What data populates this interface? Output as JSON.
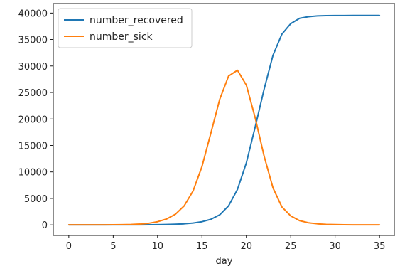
{
  "chart_data": {
    "type": "line",
    "title": "",
    "xlabel": "day",
    "ylabel": "",
    "xlim": [
      -1.75,
      36.75
    ],
    "ylim": [
      -1990,
      41790
    ],
    "grid": false,
    "legend_placement": "top-left",
    "x_ticks": [
      0,
      5,
      10,
      15,
      20,
      25,
      30,
      35
    ],
    "y_ticks": [
      0,
      5000,
      10000,
      15000,
      20000,
      25000,
      30000,
      35000,
      40000
    ],
    "x": [
      0,
      1,
      2,
      3,
      4,
      5,
      6,
      7,
      8,
      9,
      10,
      11,
      12,
      13,
      14,
      15,
      16,
      17,
      18,
      19,
      20,
      21,
      22,
      23,
      24,
      25,
      26,
      27,
      28,
      29,
      30,
      31,
      32,
      33,
      34,
      35
    ],
    "series": [
      {
        "name": "number_recovered",
        "color": "#1f77b4",
        "values": [
          0,
          0,
          0,
          0,
          0,
          0,
          0,
          5,
          10,
          20,
          40,
          70,
          120,
          200,
          350,
          600,
          1050,
          1900,
          3600,
          6700,
          11700,
          18500,
          25600,
          32000,
          36000,
          38000,
          39000,
          39300,
          39450,
          39500,
          39520,
          39530,
          39535,
          39538,
          39540,
          39540
        ]
      },
      {
        "name": "number_sick",
        "color": "#ff7f0e",
        "values": [
          0,
          0,
          0,
          0,
          10,
          20,
          40,
          70,
          150,
          300,
          600,
          1100,
          2000,
          3600,
          6400,
          11000,
          17300,
          23700,
          28100,
          29200,
          26400,
          20200,
          13000,
          7000,
          3400,
          1700,
          800,
          400,
          200,
          100,
          50,
          20,
          10,
          5,
          0,
          0
        ]
      }
    ]
  }
}
